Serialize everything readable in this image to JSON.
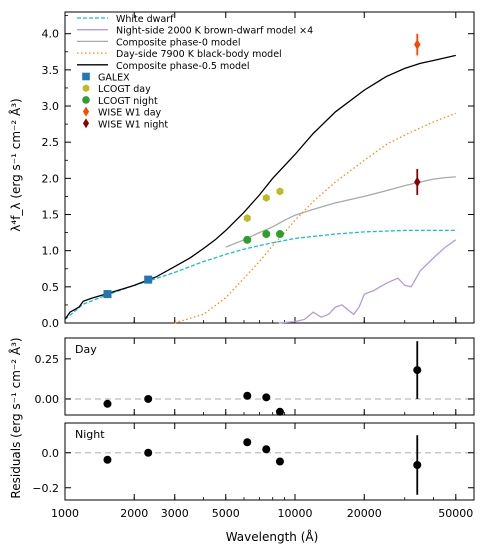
{
  "chart_data": {
    "type": "line",
    "x_scale": "log",
    "xlabel": "Wavelength (Å)",
    "xlim": [
      1000,
      60000
    ],
    "xticks": [
      1000,
      2000,
      3000,
      5000,
      10000,
      20000,
      50000
    ],
    "xtick_labels": [
      "1000",
      "2000",
      "3000",
      "5000",
      "10000",
      "20000",
      "50000"
    ],
    "main": {
      "ylabel": "λ⁴f_λ (erg s⁻¹ cm⁻² Å³)",
      "ylim": [
        0,
        4.3
      ],
      "yticks": [
        0,
        0.5,
        1.0,
        1.5,
        2.0,
        2.5,
        3.0,
        3.5,
        4.0
      ],
      "ytick_labels": [
        "0.0",
        "0.5",
        "1.0",
        "1.5",
        "2.0",
        "2.5",
        "3.0",
        "3.5",
        "4.0"
      ],
      "legend_position": "top-left",
      "series": [
        {
          "name": "White dwarf",
          "style": "dashed",
          "color": "#17becf",
          "x": [
            1000,
            1200,
            1500,
            2000,
            2300,
            3000,
            3500,
            4000,
            4500,
            5000,
            6000,
            7000,
            8000,
            9000,
            10000,
            15000,
            20000,
            30000,
            40000,
            50000
          ],
          "y": [
            0.05,
            0.26,
            0.38,
            0.52,
            0.58,
            0.7,
            0.78,
            0.85,
            0.9,
            0.95,
            1.02,
            1.07,
            1.11,
            1.14,
            1.17,
            1.23,
            1.26,
            1.28,
            1.28,
            1.28
          ]
        },
        {
          "name": "Night-side 2000 K brown-dwarf model ×4",
          "style": "solid",
          "color": "#b59be0",
          "x": [
            8500,
            10000,
            11000,
            12000,
            13000,
            14000,
            15000,
            16000,
            17000,
            18000,
            19000,
            20000,
            22000,
            25000,
            28000,
            30000,
            32000,
            35000,
            40000,
            45000,
            50000
          ],
          "y": [
            0.0,
            0.02,
            0.05,
            0.15,
            0.08,
            0.12,
            0.22,
            0.25,
            0.18,
            0.12,
            0.22,
            0.4,
            0.45,
            0.55,
            0.62,
            0.52,
            0.5,
            0.72,
            0.9,
            1.05,
            1.15
          ]
        },
        {
          "name": "Composite phase-0 model",
          "style": "solid",
          "color": "#a9a9a9",
          "x": [
            5000,
            6000,
            7000,
            8000,
            9000,
            10000,
            12000,
            15000,
            20000,
            25000,
            30000,
            35000,
            40000,
            45000,
            50000
          ],
          "y": [
            1.05,
            1.15,
            1.25,
            1.33,
            1.42,
            1.49,
            1.57,
            1.66,
            1.75,
            1.83,
            1.9,
            1.95,
            1.99,
            2.01,
            2.02
          ]
        },
        {
          "name": "Day-side 7900 K black-body model",
          "style": "dotted",
          "color": "#f28e1c",
          "x": [
            3000,
            4000,
            5000,
            6000,
            7000,
            8000,
            9000,
            10000,
            12000,
            15000,
            20000,
            25000,
            30000,
            40000,
            50000
          ],
          "y": [
            0.0,
            0.12,
            0.35,
            0.62,
            0.85,
            1.07,
            1.25,
            1.42,
            1.68,
            1.95,
            2.25,
            2.47,
            2.6,
            2.78,
            2.9
          ]
        },
        {
          "name": "Composite phase-0.5 model",
          "style": "solid",
          "color": "#000000",
          "x": [
            1000,
            1050,
            1150,
            1200,
            1300,
            1500,
            2000,
            2500,
            3000,
            3500,
            4000,
            4500,
            5000,
            6000,
            7000,
            8000,
            10000,
            12000,
            15000,
            20000,
            25000,
            30000,
            35000,
            40000,
            50000
          ],
          "y": [
            0.05,
            0.15,
            0.22,
            0.3,
            0.34,
            0.4,
            0.52,
            0.64,
            0.78,
            0.9,
            1.03,
            1.15,
            1.28,
            1.53,
            1.77,
            2.0,
            2.33,
            2.62,
            2.92,
            3.22,
            3.41,
            3.52,
            3.59,
            3.63,
            3.7
          ]
        }
      ],
      "points": [
        {
          "name": "GALEX",
          "marker": "square",
          "color": "#1f77b4",
          "x": [
            1530,
            2300
          ],
          "y": [
            0.4,
            0.6
          ]
        },
        {
          "name": "LCOGT day",
          "marker": "hexagon",
          "color": "#bcbd22",
          "x": [
            6200,
            7500,
            8600
          ],
          "y": [
            1.45,
            1.73,
            1.82
          ]
        },
        {
          "name": "LCOGT night",
          "marker": "circle",
          "color": "#2ca02c",
          "x": [
            6200,
            7500,
            8600
          ],
          "y": [
            1.15,
            1.23,
            1.23
          ]
        },
        {
          "name": "WISE W1 day",
          "marker": "diamond",
          "color": "#ff4500",
          "x": [
            34000
          ],
          "y": [
            3.85
          ],
          "yerr": [
            0.15
          ]
        },
        {
          "name": "WISE W1 night",
          "marker": "diamond",
          "color": "#8b0000",
          "x": [
            34000
          ],
          "y": [
            1.95
          ],
          "yerr": [
            0.18
          ]
        }
      ]
    },
    "residuals": {
      "ylabel": "Residuals (erg s⁻¹ cm⁻² Å³)",
      "day": {
        "label": "Day",
        "ylim": [
          -0.1,
          0.38
        ],
        "yticks": [
          0.0,
          0.25
        ],
        "ytick_labels": [
          "0.00",
          "0.25"
        ],
        "x": [
          1530,
          2300,
          6200,
          7500,
          8600,
          34000
        ],
        "y": [
          -0.03,
          0.0,
          0.02,
          0.01,
          -0.08,
          0.18
        ],
        "yerr": [
          0,
          0,
          0,
          0,
          0,
          0.18
        ]
      },
      "night": {
        "label": "Night",
        "ylim": [
          -0.27,
          0.17
        ],
        "yticks": [
          -0.2,
          0.0
        ],
        "ytick_labels": [
          "−0.2",
          "0.0"
        ],
        "x": [
          1530,
          2300,
          6200,
          7500,
          8600,
          34000
        ],
        "y": [
          -0.04,
          0.0,
          0.06,
          0.02,
          -0.05,
          -0.07
        ],
        "yerr": [
          0,
          0,
          0,
          0,
          0,
          0.17
        ]
      }
    }
  }
}
